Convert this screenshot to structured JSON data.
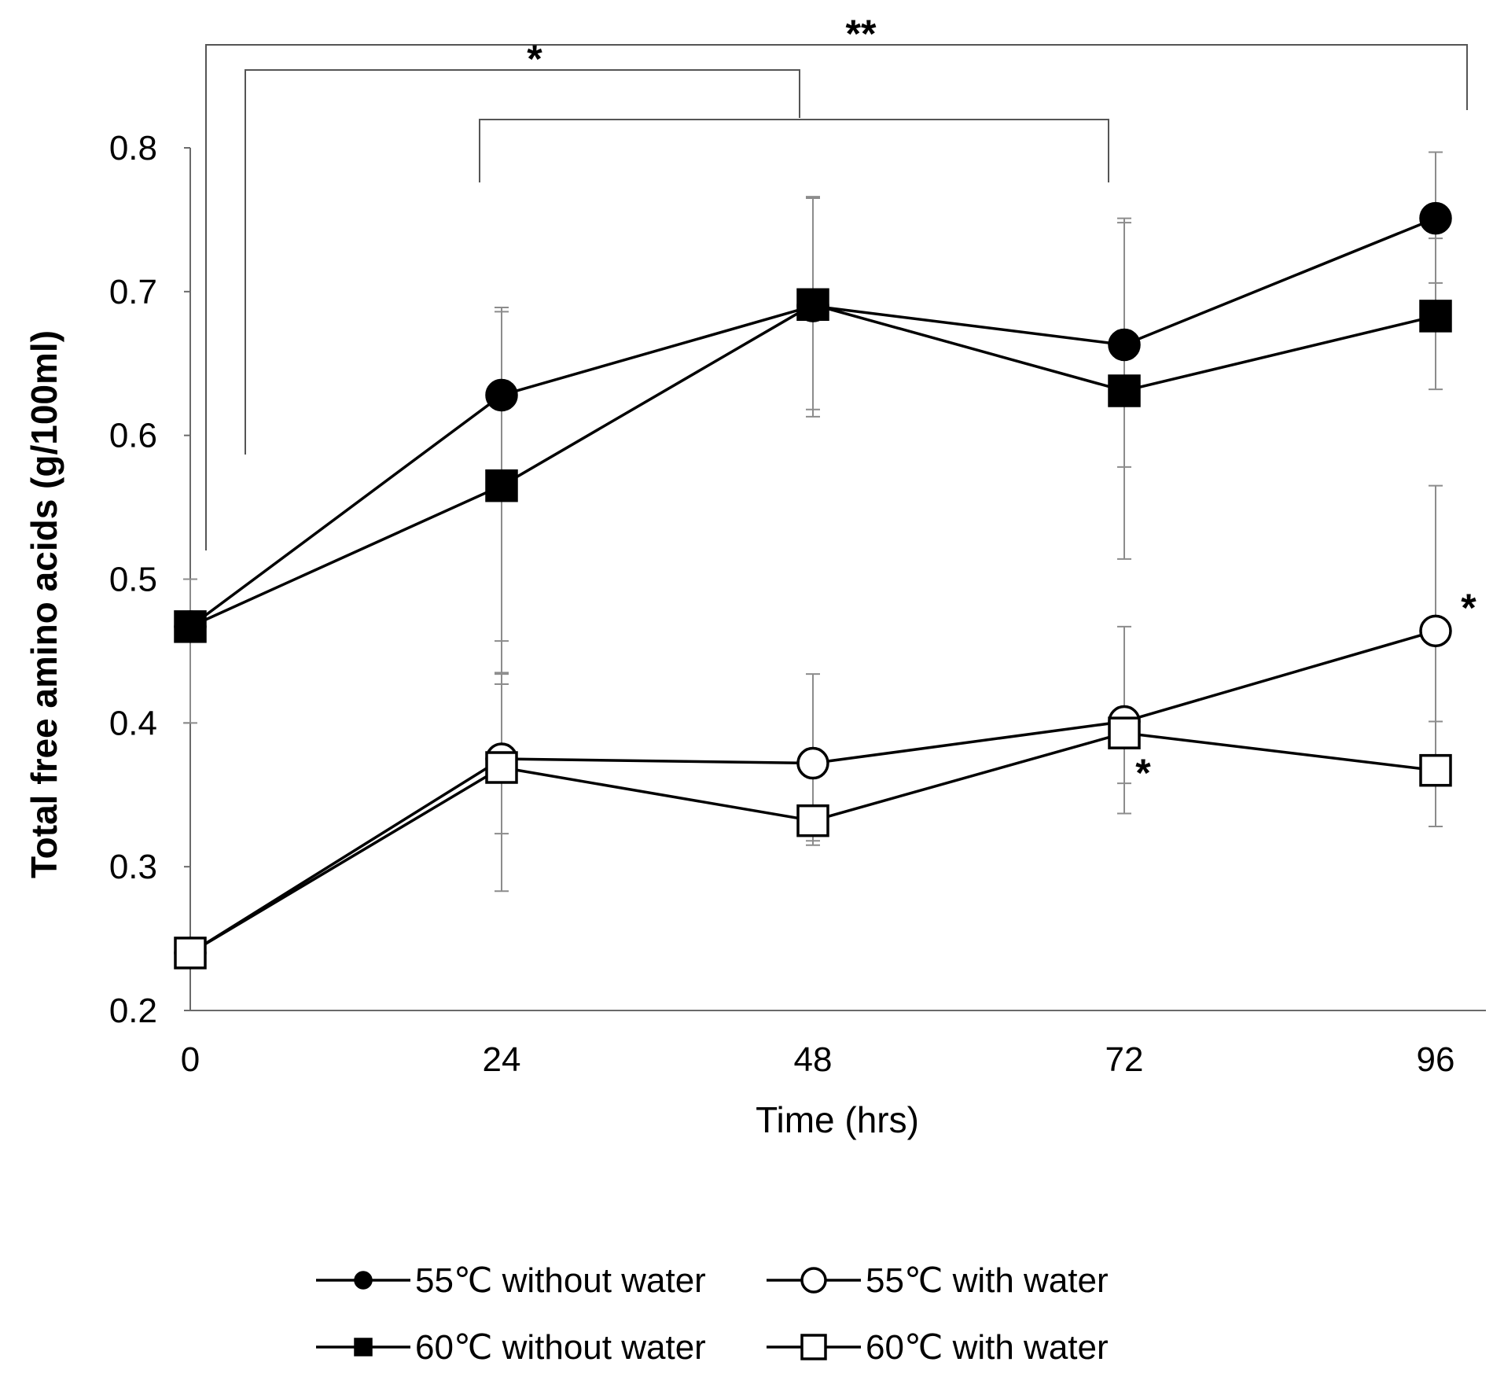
{
  "chart_data": {
    "type": "line",
    "title": "",
    "xlabel": "Time (hrs)",
    "ylabel": "Total free amino acids (g/100ml)",
    "x": [
      0,
      24,
      48,
      72,
      96
    ],
    "x_tick_labels": [
      "0",
      "24",
      "48",
      "72",
      "96"
    ],
    "xlim": [
      0,
      100
    ],
    "ylim": [
      0.2,
      0.8
    ],
    "y_ticks": [
      0.2,
      0.3,
      0.4,
      0.5,
      0.6,
      0.7,
      0.8
    ],
    "y_tick_labels": [
      "0.2",
      "0.3",
      "0.4",
      "0.5",
      "0.6",
      "0.7",
      "0.8"
    ],
    "grid": false,
    "legend_position": "bottom",
    "series": [
      {
        "name": "55℃ without water",
        "marker": "circle",
        "filled": true,
        "values": [
          0.467,
          0.628,
          0.69,
          0.663,
          0.751
        ],
        "err_upper": [
          0.0,
          0.689,
          0.765,
          0.751,
          0.797
        ],
        "err_lower": [
          0.0,
          0.457,
          0.618,
          0.514,
          0.706
        ]
      },
      {
        "name": "55℃ with water",
        "marker": "circle",
        "filled": false,
        "values": [
          0.24,
          0.375,
          0.372,
          0.401,
          0.464
        ],
        "err_upper": [
          0.0,
          0.427,
          0.434,
          0.467,
          0.565
        ],
        "err_lower": [
          0.0,
          0.323,
          0.318,
          0.337,
          0.368
        ]
      },
      {
        "name": "60℃ without water",
        "marker": "square",
        "filled": true,
        "values": [
          0.467,
          0.565,
          0.691,
          0.631,
          0.683
        ],
        "err_upper": [
          0.5,
          0.686,
          0.766,
          0.748,
          0.737
        ],
        "err_lower": [
          0.4,
          0.435,
          0.613,
          0.578,
          0.632
        ]
      },
      {
        "name": "60℃ with water",
        "marker": "square",
        "filled": false,
        "values": [
          0.24,
          0.369,
          0.332,
          0.393,
          0.367
        ],
        "err_upper": [
          0.0,
          0.434,
          0.0,
          0.408,
          0.401
        ],
        "err_lower": [
          0.0,
          0.283,
          0.315,
          0.358,
          0.328
        ]
      }
    ],
    "annotations": [
      {
        "text": "*",
        "near_x": 96,
        "near_y": 0.48
      },
      {
        "text": "*",
        "near_x": 72,
        "near_y": 0.365
      }
    ],
    "significance_brackets": [
      {
        "label": "**",
        "from_x": 0,
        "to_x": 96
      },
      {
        "label": "*",
        "from_x": 2,
        "to_x": 48
      },
      {
        "label": "",
        "from_x": 24,
        "to_x": 72
      }
    ]
  }
}
